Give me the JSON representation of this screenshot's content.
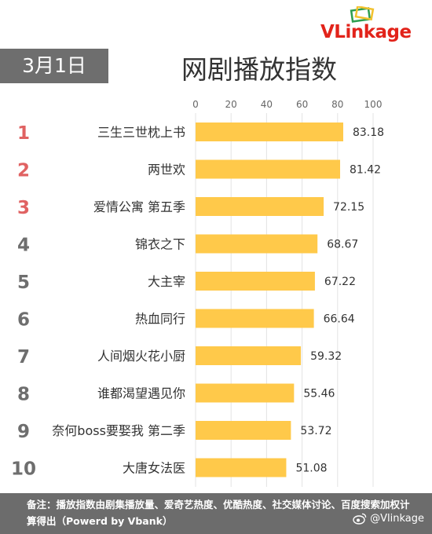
{
  "brand": {
    "logo_prefix": "VL",
    "logo_rest": "inkage",
    "colors": {
      "red": "#e2231a",
      "green": "#2e9e4f",
      "yellow": "#f2c12e"
    }
  },
  "header": {
    "date": "3月1日",
    "title": "网剧播放指数"
  },
  "footer": {
    "note": "备注：播放指数由剧集播放量、爱奇艺热度、优酷热度、社交媒体讨论、百度搜索加权计算得出（Powerd by Vbank）",
    "weibo": "@Vlinkage"
  },
  "chart_data": {
    "type": "bar",
    "orientation": "horizontal",
    "title": "网剧播放指数",
    "xlim": [
      0,
      100
    ],
    "ticks": [
      0,
      20,
      40,
      60,
      80,
      100
    ],
    "grid": true,
    "bar_color": "#ffc94a",
    "rank_colors": {
      "top3": "#e06262",
      "rest": "#6e6e6e"
    },
    "ranks": [
      "1",
      "2",
      "3",
      "4",
      "5",
      "6",
      "7",
      "8",
      "9",
      "10"
    ],
    "categories": [
      "三生三世枕上书",
      "两世欢",
      "爱情公寓 第五季",
      "锦衣之下",
      "大主宰",
      "热血同行",
      "人间烟火花小厨",
      "谁都渴望遇见你",
      "奈何boss要娶我 第二季",
      "大唐女法医"
    ],
    "values": [
      83.18,
      81.42,
      72.15,
      68.67,
      67.22,
      66.64,
      59.32,
      55.46,
      53.72,
      51.08
    ],
    "value_labels": [
      "83.18",
      "81.42",
      "72.15",
      "68.67",
      "67.22",
      "66.64",
      "59.32",
      "55.46",
      "53.72",
      "51.08"
    ]
  }
}
